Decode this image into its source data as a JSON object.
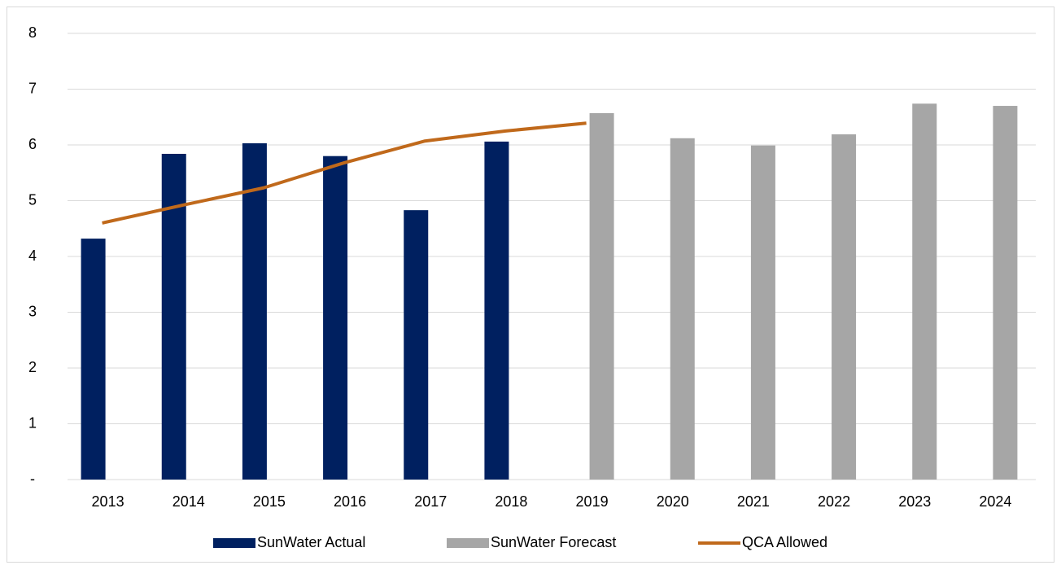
{
  "chart_data": {
    "type": "bar",
    "categories": [
      "2013",
      "2014",
      "2015",
      "2016",
      "2017",
      "2018",
      "2019",
      "2020",
      "2021",
      "2022",
      "2023",
      "2024"
    ],
    "series": [
      {
        "name": "SunWater Actual",
        "type": "bar",
        "color": "#002060",
        "values": [
          4.32,
          5.84,
          6.03,
          5.8,
          4.83,
          6.06,
          null,
          null,
          null,
          null,
          null,
          null
        ]
      },
      {
        "name": "SunWater Forecast",
        "type": "bar",
        "color": "#a6a6a6",
        "values": [
          null,
          null,
          null,
          null,
          null,
          null,
          6.57,
          6.12,
          5.99,
          6.19,
          6.74,
          6.7
        ]
      },
      {
        "name": "QCA Allowed",
        "type": "line",
        "color": "#c0691b",
        "values": [
          4.6,
          4.92,
          5.23,
          5.68,
          6.07,
          6.25,
          6.39,
          null,
          null,
          null,
          null,
          null
        ]
      }
    ],
    "ylim": [
      0,
      8
    ],
    "yticks": [
      {
        "value": 0,
        "label": "-"
      },
      1,
      2,
      3,
      4,
      5,
      6,
      7,
      8
    ],
    "grid": true,
    "legend": "bottom"
  }
}
